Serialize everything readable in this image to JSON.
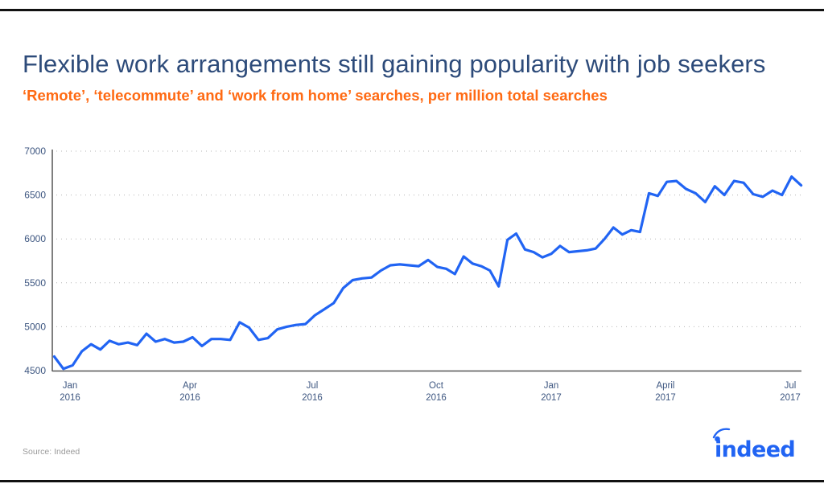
{
  "header": {
    "title": "Flexible work arrangements still gaining popularity with job seekers",
    "subtitle": "‘Remote’, ‘telecommute’ and ‘work from home’ searches, per million total searches"
  },
  "footer": {
    "source": "Source: Indeed",
    "logo_text": "indeed"
  },
  "colors": {
    "title": "#2d4b7a",
    "subtitle": "#ff6a13",
    "line": "#2164f3",
    "axis": "#555555",
    "grid": "#b5b5b5",
    "logo": "#2164f3"
  },
  "axes": {
    "y_ticks": [
      "7000",
      "6500",
      "6000",
      "5500",
      "5000",
      "4500"
    ],
    "x_ticks": [
      {
        "month": "Jan",
        "year": "2016"
      },
      {
        "month": "Apr",
        "year": "2016"
      },
      {
        "month": "Jul",
        "year": "2016"
      },
      {
        "month": "Oct",
        "year": "2016"
      },
      {
        "month": "Jan",
        "year": "2017"
      },
      {
        "month": "April",
        "year": "2017"
      },
      {
        "month": "Jul",
        "year": "2017"
      }
    ]
  },
  "chart_data": {
    "type": "line",
    "title": "Flexible work arrangements still gaining popularity with job seekers",
    "subtitle": "‘Remote’, ‘telecommute’ and ‘work from home’ searches, per million total searches",
    "xlabel": "",
    "ylabel": "",
    "ylim": [
      4500,
      7000
    ],
    "y_ticks": [
      4500,
      5000,
      5500,
      6000,
      6500,
      7000
    ],
    "x_tick_labels": [
      "Jan 2016",
      "Apr 2016",
      "Jul 2016",
      "Oct 2016",
      "Jan 2017",
      "April 2017",
      "Jul 2017"
    ],
    "grid": "horizontal dotted",
    "legend": "none",
    "source": "Source: Indeed",
    "series": [
      {
        "name": "Remote/telecommute/work from home searches per million",
        "x": [
          "2015-12-20",
          "2015-12-27",
          "2016-01-03",
          "2016-01-10",
          "2016-01-17",
          "2016-01-24",
          "2016-01-31",
          "2016-02-07",
          "2016-02-14",
          "2016-02-21",
          "2016-02-28",
          "2016-03-06",
          "2016-03-13",
          "2016-03-20",
          "2016-03-27",
          "2016-04-03",
          "2016-04-10",
          "2016-04-17",
          "2016-04-24",
          "2016-05-01",
          "2016-05-08",
          "2016-05-15",
          "2016-05-22",
          "2016-05-29",
          "2016-06-05",
          "2016-06-12",
          "2016-06-19",
          "2016-06-26",
          "2016-07-03",
          "2016-07-10",
          "2016-07-17",
          "2016-07-24",
          "2016-07-31",
          "2016-08-07",
          "2016-08-14",
          "2016-08-21",
          "2016-08-28",
          "2016-09-04",
          "2016-09-11",
          "2016-09-18",
          "2016-09-25",
          "2016-10-02",
          "2016-10-09",
          "2016-10-16",
          "2016-10-23",
          "2016-10-30",
          "2016-11-06",
          "2016-11-13",
          "2016-11-20",
          "2016-11-27",
          "2016-12-04",
          "2016-12-11",
          "2016-12-18",
          "2016-12-25",
          "2017-01-01",
          "2017-01-08",
          "2017-01-15",
          "2017-01-22",
          "2017-01-29",
          "2017-02-05",
          "2017-02-12",
          "2017-02-19",
          "2017-02-26",
          "2017-03-05",
          "2017-03-12",
          "2017-03-19",
          "2017-03-26",
          "2017-04-02",
          "2017-04-09",
          "2017-04-16",
          "2017-04-23",
          "2017-04-30",
          "2017-05-07",
          "2017-05-14",
          "2017-05-21",
          "2017-05-28",
          "2017-06-04",
          "2017-06-11",
          "2017-06-18",
          "2017-06-25",
          "2017-07-02",
          "2017-07-09"
        ],
        "values": [
          4660,
          4520,
          4560,
          4720,
          4800,
          4740,
          4840,
          4800,
          4820,
          4790,
          4920,
          4830,
          4860,
          4820,
          4830,
          4880,
          4780,
          4860,
          4860,
          4850,
          5050,
          4990,
          4850,
          4870,
          4970,
          5000,
          5020,
          5030,
          5130,
          5200,
          5270,
          5440,
          5530,
          5550,
          5560,
          5640,
          5700,
          5710,
          5700,
          5690,
          5760,
          5680,
          5660,
          5600,
          5800,
          5720,
          5690,
          5640,
          5460,
          5990,
          6060,
          5880,
          5850,
          5790,
          5830,
          5920,
          5850,
          5860,
          5870,
          5890,
          6000,
          6130,
          6050,
          6100,
          6080,
          6520,
          6490,
          6650,
          6660,
          6570,
          6520,
          6420,
          6600,
          6500,
          6660,
          6640,
          6510,
          6480,
          6550,
          6500,
          6710,
          6610
        ]
      }
    ]
  }
}
